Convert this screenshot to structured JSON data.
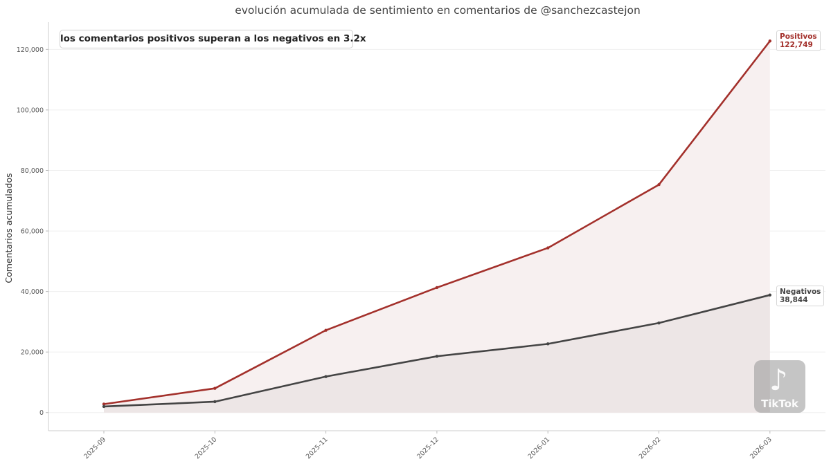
{
  "chart_data": {
    "type": "line",
    "title": "evolución acumulada de sentimiento en comentarios de @sanchezcastejon",
    "xlabel": "",
    "ylabel": "Comentarios acumulados",
    "categories": [
      "2025-09",
      "2025-10",
      "2025-11",
      "2025-12",
      "2026-01",
      "2026-02",
      "2026-03"
    ],
    "series": [
      {
        "name": "Positivos",
        "color": "#a3302b",
        "fill": "#f7f0f0",
        "values": [
          2800,
          8000,
          27200,
          41300,
          54400,
          75300,
          122749
        ]
      },
      {
        "name": "Negativos",
        "color": "#444444",
        "fill": "#ede6e6",
        "values": [
          2000,
          3600,
          11900,
          18600,
          22700,
          29600,
          38844
        ]
      }
    ],
    "ylim": [
      -6000,
      129000
    ],
    "yticks": [
      0,
      20000,
      40000,
      60000,
      80000,
      100000,
      120000
    ],
    "ytick_labels": [
      "0",
      "20,000",
      "40,000",
      "60,000",
      "80,000",
      "100,000",
      "120,000"
    ],
    "grid": true,
    "annotation": "los comentarios positivos superan a los negativos en 3.2x",
    "end_labels": [
      {
        "series": "Positivos",
        "name": "Positivos",
        "value": "122,749"
      },
      {
        "series": "Negativos",
        "name": "Negativos",
        "value": "38,844"
      }
    ],
    "watermark": "TikTok"
  }
}
